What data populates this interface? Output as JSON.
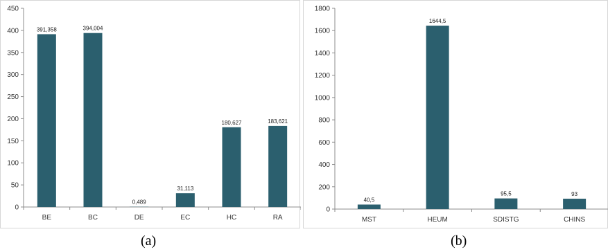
{
  "colors": {
    "bar": "#2b5f6e",
    "axis": "#8c8c8c",
    "grid": "#d9d9d9"
  },
  "chart_data": [
    {
      "type": "bar",
      "title": "",
      "xlabel": "",
      "ylabel": "",
      "ylim": [
        0,
        450
      ],
      "yticks": [
        0,
        50,
        100,
        150,
        200,
        250,
        300,
        350,
        400,
        450
      ],
      "categories": [
        "BE",
        "BC",
        "DE",
        "EC",
        "HC",
        "RA"
      ],
      "values": [
        391.358,
        394.004,
        0.489,
        31.113,
        180.627,
        183.621
      ],
      "data_labels": [
        "391,358",
        "394,004",
        "0,489",
        "31,113",
        "180,627",
        "183,621"
      ],
      "grid": false,
      "caption": "(a)"
    },
    {
      "type": "bar",
      "title": "",
      "xlabel": "",
      "ylabel": "",
      "ylim": [
        0,
        1800
      ],
      "yticks": [
        0,
        200,
        400,
        600,
        800,
        1000,
        1200,
        1400,
        1600,
        1800
      ],
      "categories": [
        "MST",
        "HEUM",
        "SDISTG",
        "CHINS"
      ],
      "values": [
        40.5,
        1644.5,
        95.5,
        93
      ],
      "data_labels": [
        "40,5",
        "1644,5",
        "95,5",
        "93"
      ],
      "grid": false,
      "caption": "(b)"
    }
  ]
}
